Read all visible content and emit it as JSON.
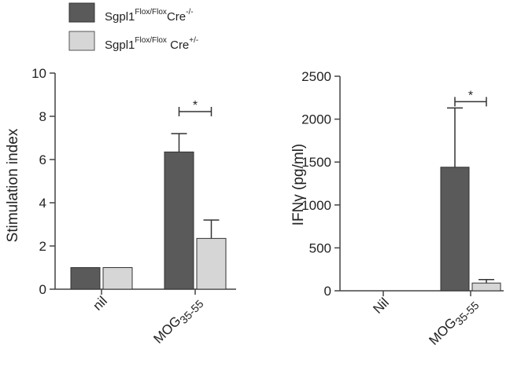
{
  "legend": {
    "entries": [
      {
        "base": "Sgpl1",
        "sup1": "Flox/Flox",
        "mid": "Cre",
        "sup2": "-/-",
        "color": "#5a5a5a"
      },
      {
        "base": "Sgpl1",
        "sup1": "Flox/Flox",
        "mid": " Cre",
        "sup2": "+/-",
        "color": "#d6d6d6"
      }
    ]
  },
  "chart_data": [
    {
      "type": "bar",
      "ylabel": "Stimulation index",
      "ylim": [
        0,
        10
      ],
      "yticks": [
        0,
        2,
        4,
        6,
        8,
        10
      ],
      "categories": [
        {
          "main": "nil",
          "sub": ""
        },
        {
          "main": "MOG",
          "sub": "35-55"
        }
      ],
      "series": [
        {
          "values": [
            1.0,
            6.35
          ],
          "errors": [
            0,
            0.85
          ],
          "color": "#5a5a5a"
        },
        {
          "values": [
            1.0,
            2.35
          ],
          "errors": [
            0,
            0.85
          ],
          "color": "#d6d6d6"
        }
      ],
      "significance": [
        {
          "category_index": 1,
          "label": "*"
        }
      ]
    },
    {
      "type": "bar",
      "ylabel": "IFNγ (pg/ml)",
      "ylim": [
        0,
        2500
      ],
      "yticks": [
        0,
        500,
        1000,
        1500,
        2000,
        2500
      ],
      "categories": [
        {
          "main": "Nil",
          "sub": ""
        },
        {
          "main": "MOG",
          "sub": "35-55"
        }
      ],
      "series": [
        {
          "values": [
            0,
            1440
          ],
          "errors": [
            0,
            690
          ],
          "color": "#5a5a5a"
        },
        {
          "values": [
            0,
            90
          ],
          "errors": [
            0,
            40
          ],
          "color": "#d6d6d6"
        }
      ],
      "significance": [
        {
          "category_index": 1,
          "label": "*"
        }
      ]
    }
  ]
}
